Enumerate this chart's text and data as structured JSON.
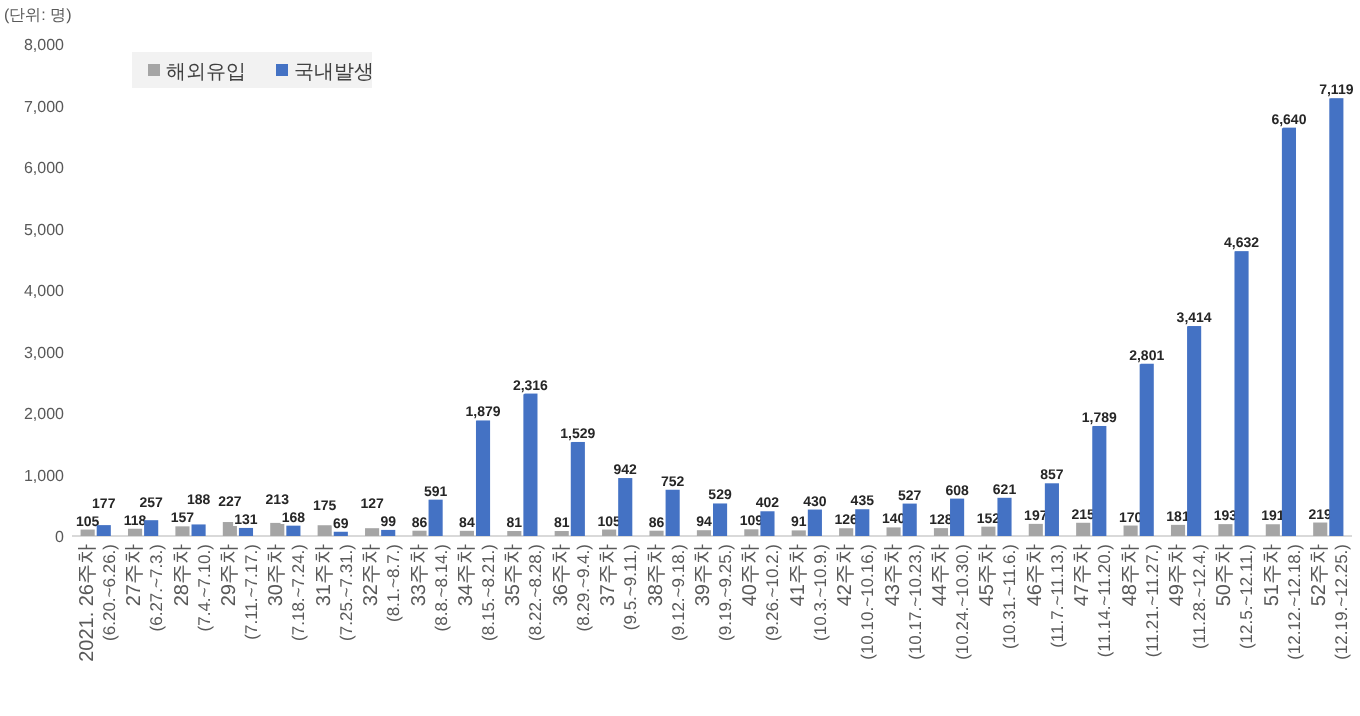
{
  "chart_data": {
    "type": "bar",
    "categories": [
      "2021. 26주차\n(6.20.~6.26.)",
      "27주차\n(6.27.~7.3.)",
      "28주차\n(7.4.~7.10.)",
      "29주차\n(7.11.~7.17.)",
      "30주차\n(7.18.~7.24.)",
      "31주차\n(7.25.~7.31.)",
      "32주차\n(8.1.~8.7.)",
      "33주차\n(8.8.~8.14.)",
      "34주차\n(8.15.~8.21.)",
      "35주차\n(8.22.~8.28.)",
      "36주차\n(8.29.~9.4.)",
      "37주차\n(9.5.~9.11.)",
      "38주차\n(9.12.~9.18.)",
      "39주차\n(9.19.~9.25.)",
      "40주차\n(9.26.~10.2.)",
      "41주차\n(10.3.~10.9.)",
      "42주차\n(10.10.~10.16.)",
      "43주차\n(10.17.~10.23.)",
      "44주차\n(10.24.~10.30.)",
      "45주차\n(10.31.~11.6.)",
      "46주차\n(11.7.~11.13.)",
      "47주차\n(11.14.~11.20.)",
      "48주차\n(11.21.~11.27.)",
      "49주차\n(11.28.~12.4.)",
      "50주차\n(12.5.~12.11.)",
      "51주차\n(12.12.~12.18.)",
      "52주차\n(12.19.~12.25.)"
    ],
    "series": [
      {
        "name": "해외유입",
        "color": "#a5a5a5",
        "values": [
          105,
          118,
          157,
          227,
          213,
          175,
          127,
          86,
          84,
          81,
          81,
          105,
          86,
          94,
          109,
          91,
          126,
          140,
          128,
          152,
          197,
          215,
          170,
          181,
          193,
          191,
          219
        ],
        "value_labels": [
          "105",
          "118",
          "157",
          "227",
          "213",
          "175",
          "127",
          "86",
          "84",
          "81",
          "81",
          "105",
          "86",
          "94",
          "109",
          "91",
          "126",
          "140",
          "128",
          "152",
          "197",
          "215",
          "170",
          "181",
          "193",
          "191",
          "219"
        ]
      },
      {
        "name": "국내발생",
        "color": "#4472c4",
        "values": [
          177,
          257,
          188,
          131,
          168,
          69,
          99,
          591,
          1879,
          2316,
          1529,
          942,
          752,
          529,
          402,
          430,
          435,
          527,
          608,
          621,
          857,
          1789,
          2801,
          3414,
          4632,
          6640,
          7119
        ],
        "value_labels": [
          "177",
          "257",
          "188",
          "131",
          "168",
          "69",
          "99",
          "591",
          "1,879",
          "2,316",
          "1,529",
          "942",
          "752",
          "529",
          "402",
          "430",
          "435",
          "527",
          "608",
          "621",
          "857",
          "1,789",
          "2,801",
          "3,414",
          "4,632",
          "6,640",
          "7,119"
        ]
      }
    ],
    "ylim": [
      0,
      8000
    ],
    "yticks": [
      {
        "value": 0,
        "label": "0"
      },
      {
        "value": 1000,
        "label": "1,000"
      },
      {
        "value": 2000,
        "label": "2,000"
      },
      {
        "value": 3000,
        "label": "3,000"
      },
      {
        "value": 4000,
        "label": "4,000"
      },
      {
        "value": 5000,
        "label": "5,000"
      },
      {
        "value": 6000,
        "label": "6,000"
      },
      {
        "value": 7000,
        "label": "7,000"
      },
      {
        "value": 8000,
        "label": "8,000"
      }
    ],
    "annotations": [
      "(단위: 명)"
    ],
    "legend": "top left",
    "grid": false
  }
}
